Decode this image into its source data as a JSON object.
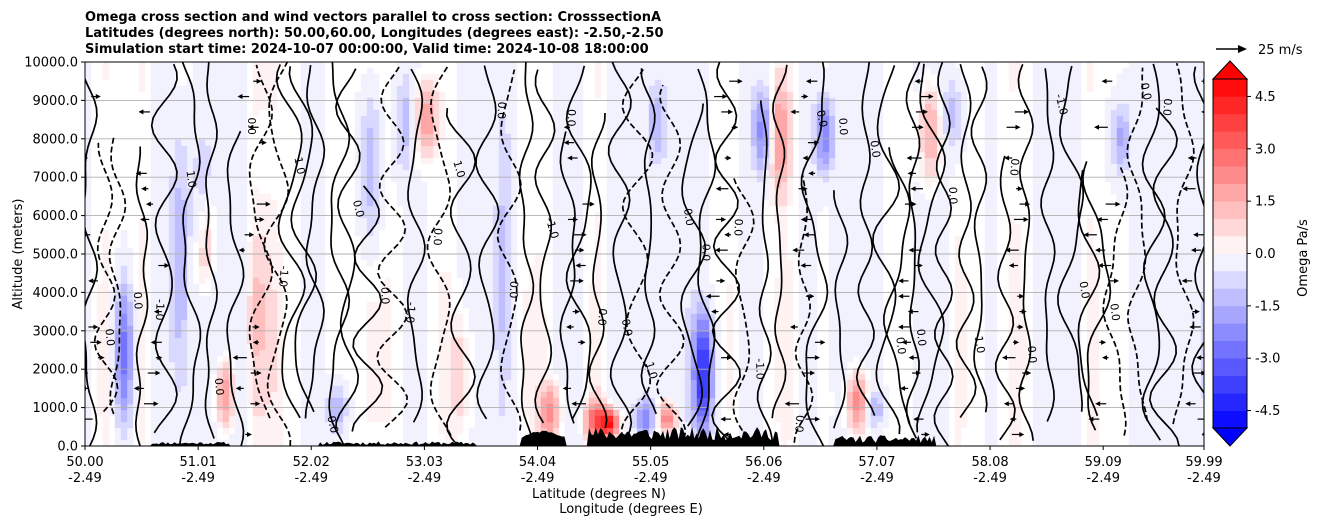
{
  "chart_data": {
    "type": "contour-cross-section",
    "title_lines": [
      "Omega cross section and wind vectors parallel to cross section: CrosssectionA",
      "Latitudes (degrees north): 50.00,60.00, Longitudes (degrees east): -2.50,-2.50",
      "Simulation start time: 2024-10-07 00:00:00, Valid time: 2024-10-08 18:00:00"
    ],
    "ylabel": "Altitude (meters)",
    "xlabel_line1": "Latitude (degrees N)",
    "xlabel_line2": "Longitude (degrees E)",
    "ylim": [
      0,
      10000
    ],
    "yticks": [
      "0.0",
      "1000.0",
      "2000.0",
      "3000.0",
      "4000.0",
      "5000.0",
      "6000.0",
      "7000.0",
      "8000.0",
      "9000.0",
      "10000.0"
    ],
    "xlim": [
      50.0,
      59.99
    ],
    "xticks": [
      {
        "lat": "50.00",
        "lon": "-2.49",
        "v": 50.0
      },
      {
        "lat": "51.01",
        "lon": "-2.49",
        "v": 51.01
      },
      {
        "lat": "52.02",
        "lon": "-2.49",
        "v": 52.02
      },
      {
        "lat": "53.03",
        "lon": "-2.49",
        "v": 53.03
      },
      {
        "lat": "54.04",
        "lon": "-2.49",
        "v": 54.04
      },
      {
        "lat": "55.05",
        "lon": "-2.49",
        "v": 55.05
      },
      {
        "lat": "56.06",
        "lon": "-2.49",
        "v": 56.06
      },
      {
        "lat": "57.07",
        "lon": "-2.49",
        "v": 57.07
      },
      {
        "lat": "58.08",
        "lon": "-2.49",
        "v": 58.08
      },
      {
        "lat": "59.09",
        "lon": "-2.49",
        "v": 59.09
      },
      {
        "lat": "59.99",
        "lon": "-2.49",
        "v": 59.99
      }
    ],
    "grid": "horizontal",
    "colorbar": {
      "label": "Omega Pa/s",
      "range": [
        -5.0,
        5.0
      ],
      "ticks": [
        "-4.5",
        "-3.0",
        "-1.5",
        "0.0",
        "1.5",
        "3.0",
        "4.5"
      ],
      "tick_values": [
        -4.5,
        -3.0,
        -1.5,
        0.0,
        1.5,
        3.0,
        4.5
      ],
      "cmap": "bwr",
      "extend": "both"
    },
    "quiver_key": {
      "label": "25 m/s",
      "speed": 25
    },
    "contour_levels": [
      -1.0,
      0.0,
      1.0
    ],
    "contour_labels": [
      "0.0",
      "0.0",
      "-1.0",
      "1.0",
      "0.0",
      "0.0",
      "-1.0",
      "1.0",
      "0.0",
      "0.0",
      "0.0",
      "-1.0",
      "0.0",
      "1.0",
      "0.0",
      "0.0",
      "-1.0",
      "0.0",
      "0.0",
      "0.0",
      "1.0",
      "0.0",
      "0.0",
      "0.0",
      "-1.0",
      "0.0",
      "0.0",
      "0.0",
      "0.0",
      "0.0",
      "0.0",
      "0.0",
      "1.0",
      "0.0",
      "0.0",
      "-1.0",
      "0.0",
      "0.0",
      "0.0",
      "0.0"
    ],
    "omega_features": [
      {
        "lat": 50.35,
        "z0": 300,
        "z1": 4500,
        "value": -2.8
      },
      {
        "lat": 50.85,
        "z0": 500,
        "z1": 8500,
        "value": -1.6
      },
      {
        "lat": 51.05,
        "z0": 4500,
        "z1": 8200,
        "value": -1.2
      },
      {
        "lat": 51.25,
        "z0": 300,
        "z1": 2400,
        "value": 2.2
      },
      {
        "lat": 51.07,
        "z0": 4000,
        "z1": 7000,
        "value": 1.6
      },
      {
        "lat": 51.55,
        "z0": 1500,
        "z1": 5500,
        "value": 0.7
      },
      {
        "lat": 52.25,
        "z0": 300,
        "z1": 1600,
        "value": -1.6
      },
      {
        "lat": 52.55,
        "z0": 5000,
        "z1": 9500,
        "value": -1.4
      },
      {
        "lat": 52.85,
        "z0": 7000,
        "z1": 9800,
        "value": -1.2
      },
      {
        "lat": 53.05,
        "z0": 7500,
        "z1": 9500,
        "value": 2.0
      },
      {
        "lat": 53.35,
        "z0": 200,
        "z1": 3500,
        "value": 0.8
      },
      {
        "lat": 53.75,
        "z0": 1500,
        "z1": 9000,
        "value": -0.9
      },
      {
        "lat": 54.15,
        "z0": 100,
        "z1": 1600,
        "value": 2.2
      },
      {
        "lat": 54.55,
        "z0": 100,
        "z1": 1200,
        "value": 2.8
      },
      {
        "lat": 54.68,
        "z0": 200,
        "z1": 1000,
        "value": 4.5
      },
      {
        "lat": 55.0,
        "z0": 200,
        "z1": 1300,
        "value": -2.4
      },
      {
        "lat": 55.2,
        "z0": 300,
        "z1": 1200,
        "value": 2.6
      },
      {
        "lat": 55.52,
        "z0": 200,
        "z1": 3600,
        "value": -4.3
      },
      {
        "lat": 55.1,
        "z0": 7200,
        "z1": 9600,
        "value": -1.4
      },
      {
        "lat": 56.05,
        "z0": 7000,
        "z1": 9500,
        "value": -2.2
      },
      {
        "lat": 56.2,
        "z0": 6500,
        "z1": 9600,
        "value": 2.0
      },
      {
        "lat": 56.6,
        "z0": 7000,
        "z1": 9200,
        "value": -2.4
      },
      {
        "lat": 56.9,
        "z0": 300,
        "z1": 2000,
        "value": 2.4
      },
      {
        "lat": 57.05,
        "z0": 500,
        "z1": 1500,
        "value": -1.5
      },
      {
        "lat": 57.55,
        "z0": 6800,
        "z1": 9500,
        "value": 1.6
      },
      {
        "lat": 57.75,
        "z0": 7500,
        "z1": 9800,
        "value": -1.2
      },
      {
        "lat": 59.25,
        "z0": 7000,
        "z1": 9000,
        "value": -1.6
      }
    ]
  }
}
